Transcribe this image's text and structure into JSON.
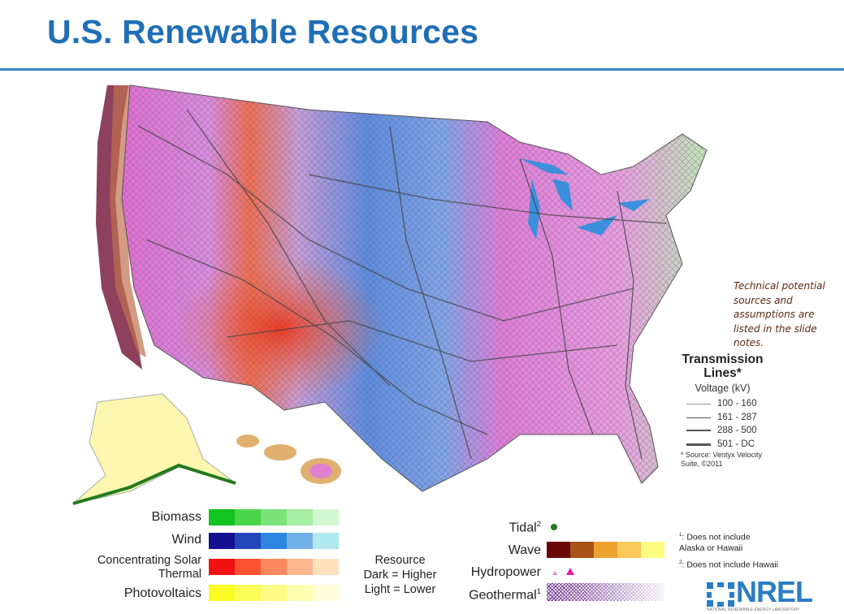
{
  "title": "U.S. Renewable Resources",
  "note": "Technical potential sources and assumptions are listed in the slide notes.",
  "transmission_legend": {
    "title": "Transmission Lines*",
    "subtitle": "Voltage (kV)",
    "rows": [
      {
        "label": "100 - 160"
      },
      {
        "label": "161 - 287"
      },
      {
        "label": "288 - 500"
      },
      {
        "label": "501 - DC"
      }
    ],
    "source": "* Source: Ventyx Velocity Suite, ©2011"
  },
  "legend": {
    "biomass": {
      "label": "Biomass",
      "colors": [
        "#12c41e",
        "#4bd54b",
        "#7ce27a",
        "#a8eda4",
        "#d3f8d1"
      ]
    },
    "wind": {
      "label": "Wind",
      "colors": [
        "#14108f",
        "#2446bb",
        "#2d86e0",
        "#72b1e8",
        "#b0e8ef"
      ]
    },
    "csp": {
      "label": "Concentrating Solar Thermal",
      "colors": [
        "#f01212",
        "#fc5230",
        "#fd8a5f",
        "#feb68c",
        "#fee2c0"
      ]
    },
    "pv": {
      "label": "Photovoltaics",
      "colors": [
        "#fafa24",
        "#fcfc58",
        "#fdfd86",
        "#fefeb0",
        "#fffedb"
      ]
    },
    "resource_note": [
      "Resource",
      "Dark = Higher",
      "Light = Lower"
    ],
    "tidal": {
      "label": "Tidal",
      "sup": "2",
      "color": "#237a1e"
    },
    "wave": {
      "label": "Wave",
      "colors": [
        "#6b0606",
        "#a9531a",
        "#eda22f",
        "#fbc95c",
        "#fcfc80"
      ]
    },
    "hydropower": {
      "label": "Hydropower",
      "color": "#e020b0"
    },
    "geothermal": {
      "label": "Geothermal",
      "sup": "1",
      "color": "#5d1f80"
    }
  },
  "footnotes": [
    {
      "sup": "1",
      "text": ": Does not include Alaska or Hawaii"
    },
    {
      "sup": "2",
      "text": ": Does not include Hawaii"
    }
  ],
  "logo": {
    "text": "NREL",
    "subtext": "NATIONAL RENEWABLE ENERGY LABORATORY",
    "color": "#2a7dc4"
  }
}
